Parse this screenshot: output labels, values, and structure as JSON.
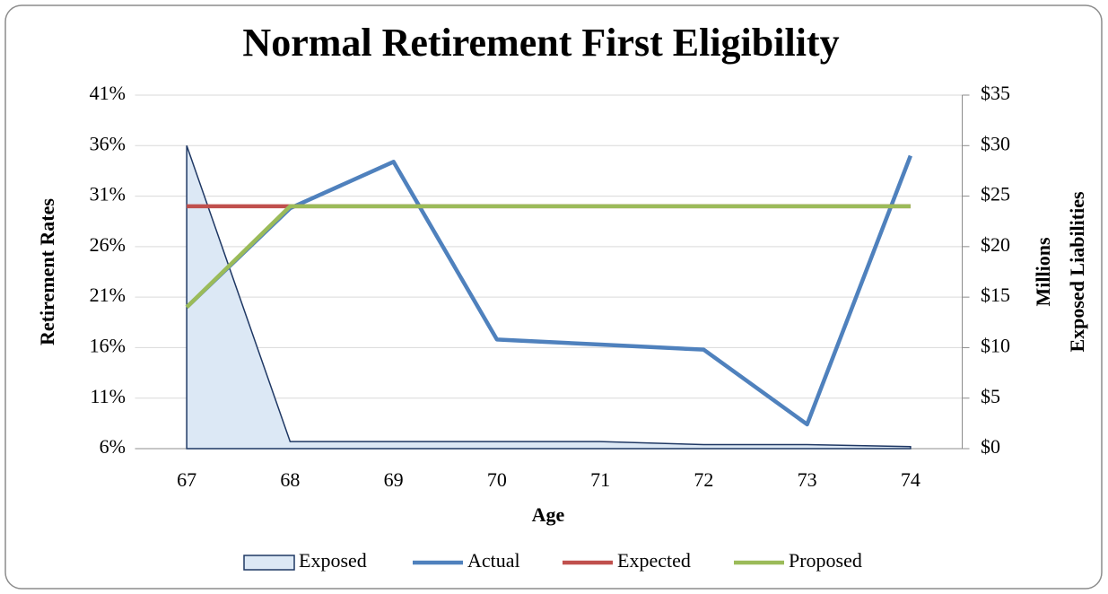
{
  "chart_data": {
    "type": "line",
    "title": "Normal Retirement First Eligibility",
    "x_label": "Age",
    "y_label": "Retirement Rates",
    "y2_label": [
      "Millions",
      "Exposed Liabilities"
    ],
    "categories": [
      "67",
      "68",
      "69",
      "70",
      "71",
      "72",
      "73",
      "74"
    ],
    "ylim": [
      6,
      41
    ],
    "yticks": [
      {
        "value": 6,
        "label": "6%"
      },
      {
        "value": 11,
        "label": "11%"
      },
      {
        "value": 16,
        "label": "16%"
      },
      {
        "value": 21,
        "label": "21%"
      },
      {
        "value": 26,
        "label": "26%"
      },
      {
        "value": 31,
        "label": "31%"
      },
      {
        "value": 36,
        "label": "36%"
      },
      {
        "value": 41,
        "label": "41%"
      }
    ],
    "y2lim": [
      0,
      35
    ],
    "y2ticks": [
      {
        "value": 0,
        "label": "$0"
      },
      {
        "value": 5,
        "label": "$5"
      },
      {
        "value": 10,
        "label": "$10"
      },
      {
        "value": 15,
        "label": "$15"
      },
      {
        "value": 20,
        "label": "$20"
      },
      {
        "value": 25,
        "label": "$25"
      },
      {
        "value": 30,
        "label": "$30"
      },
      {
        "value": 35,
        "label": "$35"
      }
    ],
    "grid": true,
    "legend": "bottom",
    "series": [
      {
        "name": "Exposed",
        "type": "area",
        "axis": "y2",
        "color": "#dce8f5",
        "edge": "#1f3864",
        "values": [
          30,
          0.7,
          0.7,
          0.7,
          0.7,
          0.4,
          0.4,
          0.2
        ]
      },
      {
        "name": "Actual",
        "type": "line",
        "color": "#4f81bd",
        "values": [
          20,
          29.8,
          34.4,
          16.8,
          16.3,
          15.8,
          8.4,
          35
        ]
      },
      {
        "name": "Expected",
        "type": "line",
        "color": "#c0504d",
        "values": [
          30,
          30,
          30,
          30,
          30,
          30,
          30,
          30
        ]
      },
      {
        "name": "Proposed",
        "type": "line",
        "color": "#9bbb59",
        "values": [
          20,
          30,
          30,
          30,
          30,
          30,
          30,
          30
        ]
      }
    ]
  }
}
